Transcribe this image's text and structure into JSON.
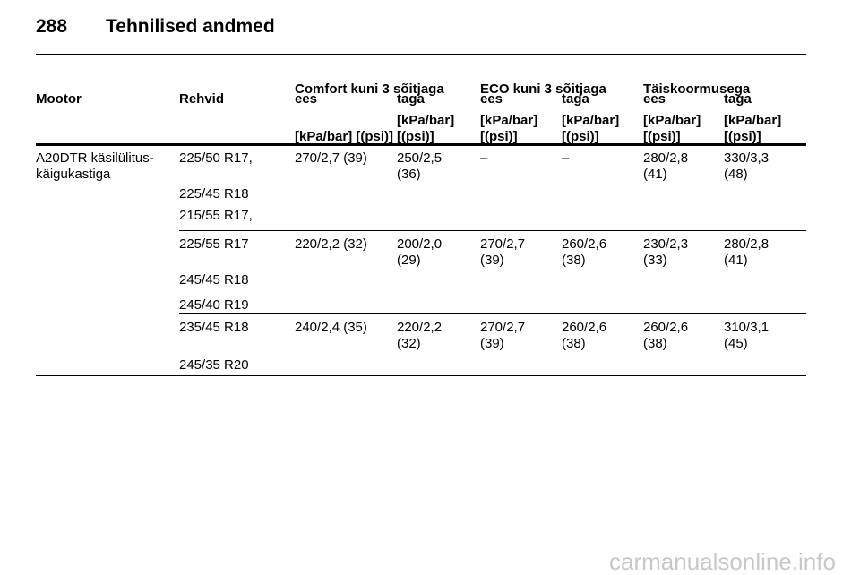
{
  "header": {
    "page_number": "288",
    "title": "Tehnilised andmed"
  },
  "table": {
    "group_headers": [
      "Comfort kuni 3 sõitjaga",
      "ECO kuni 3 sõitjaga",
      "Täiskoormusega"
    ],
    "columns": [
      "Mootor",
      "Rehvid",
      "ees",
      "taga",
      "ees",
      "taga",
      "ees",
      "taga"
    ],
    "units": [
      [
        "[kPa/bar] [(psi)]"
      ],
      [
        "[kPa/bar]",
        "[(psi)]"
      ],
      [
        "[kPa/bar]",
        "[(psi)]"
      ],
      [
        "[kPa/bar]",
        "[(psi)]"
      ],
      [
        "[kPa/bar]",
        "[(psi)]"
      ],
      [
        "[kPa/bar]",
        "[(psi)]"
      ]
    ],
    "groups": [
      {
        "engine": [
          "A20DTR käsilülitus-",
          "käigukastiga"
        ],
        "tyres": [
          "225/50 R17,",
          "225/45 R18",
          "215/55 R17,"
        ],
        "values": [
          [
            "270/2,7 (39)"
          ],
          [
            "250/2,5",
            "(36)"
          ],
          [
            "–"
          ],
          [
            "–"
          ],
          [
            "280/2,8",
            "(41)"
          ],
          [
            "330/3,3",
            "(48)"
          ]
        ]
      },
      {
        "tyres": [
          "225/55 R17",
          "245/45 R18",
          "245/40 R19"
        ],
        "values": [
          [
            "220/2,2 (32)"
          ],
          [
            "200/2,0",
            "(29)"
          ],
          [
            "270/2,7",
            "(39)"
          ],
          [
            "260/2,6",
            "(38)"
          ],
          [
            "230/2,3",
            "(33)"
          ],
          [
            "280/2,8",
            "(41)"
          ]
        ]
      },
      {
        "tyres": [
          "235/45 R18",
          "245/35 R20"
        ],
        "values": [
          [
            "240/2,4 (35)"
          ],
          [
            "220/2,2",
            "(32)"
          ],
          [
            "270/2,7",
            "(39)"
          ],
          [
            "260/2,6",
            "(38)"
          ],
          [
            "260/2,6",
            "(38)"
          ],
          [
            "310/3,1",
            "(45)"
          ]
        ]
      }
    ]
  },
  "watermark": "carmanualsonline.info"
}
